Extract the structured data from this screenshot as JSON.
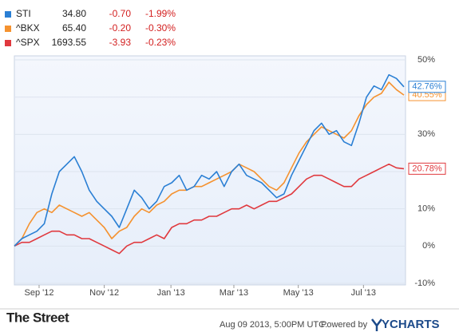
{
  "chart_data": {
    "type": "line",
    "x": [
      0,
      1,
      2,
      3,
      4,
      5,
      6,
      7,
      8,
      9,
      10,
      11,
      12,
      13,
      14,
      15,
      16,
      17,
      18,
      19,
      20,
      21,
      22,
      23,
      24,
      25,
      26,
      27,
      28,
      29,
      30,
      31,
      32,
      33,
      34,
      35,
      36,
      37,
      38,
      39,
      40,
      41,
      42,
      43,
      44,
      45,
      46,
      47,
      48,
      49,
      50,
      51,
      52
    ],
    "xlim": [
      0,
      52
    ],
    "xticks": [
      {
        "value": 3.3,
        "label": "Sep '12"
      },
      {
        "value": 12,
        "label": "Nov '12"
      },
      {
        "value": 20.9,
        "label": "Jan '13"
      },
      {
        "value": 29.3,
        "label": "Mar '13"
      },
      {
        "value": 37.9,
        "label": "May '13"
      },
      {
        "value": 46.6,
        "label": "Jul '13"
      }
    ],
    "ylim": [
      -10,
      50
    ],
    "yticks": [
      {
        "value": -10,
        "label": "-10%"
      },
      {
        "value": 0,
        "label": "0%"
      },
      {
        "value": 10,
        "label": "10%"
      },
      {
        "value": 20,
        "label": "20%"
      },
      {
        "value": 30,
        "label": "30%"
      },
      {
        "value": 40,
        "label": "40%"
      },
      {
        "value": 50,
        "label": "50%"
      }
    ],
    "grid": true,
    "series": [
      {
        "name": "STI",
        "color": "#2a7fd4",
        "price": {
          "value": 34.8,
          "label": "34.80"
        },
        "change": {
          "value": -0.7,
          "label": "-0.70"
        },
        "change_pct": {
          "value": -1.99,
          "label": "-1.99%"
        },
        "values": [
          0,
          2,
          3,
          4,
          6,
          14,
          20,
          22,
          24,
          20,
          15,
          12,
          10,
          8,
          5,
          10,
          15,
          13,
          10,
          12,
          16,
          17,
          19,
          15,
          16,
          19,
          18,
          20,
          16,
          20,
          22,
          19,
          18,
          17,
          15,
          13,
          14,
          19,
          23,
          27,
          31,
          33,
          30,
          31,
          28,
          27,
          33,
          40,
          43,
          42,
          46,
          45,
          42.76
        ],
        "value_labels": [
          null,
          null,
          null,
          null,
          null,
          null,
          null,
          null,
          null,
          null,
          null,
          null,
          null,
          null,
          null,
          null,
          null,
          null,
          null,
          null,
          null,
          null,
          null,
          null,
          null,
          null,
          null,
          null,
          null,
          null,
          null,
          null,
          null,
          null,
          null,
          null,
          null,
          null,
          null,
          null,
          null,
          null,
          null,
          null,
          null,
          null,
          null,
          null,
          null,
          null,
          null,
          null,
          "42.76%"
        ]
      },
      {
        "name": "^BKX",
        "color": "#f5922f",
        "price": {
          "value": 65.4,
          "label": "65.40"
        },
        "change": {
          "value": -0.2,
          "label": "-0.20"
        },
        "change_pct": {
          "value": -0.3,
          "label": "-0.30%"
        },
        "values": [
          0,
          2,
          6,
          9,
          10,
          9,
          11,
          10,
          9,
          8,
          9,
          7,
          5,
          2,
          4,
          5,
          8,
          10,
          9,
          11,
          12,
          14,
          15,
          15,
          16,
          16,
          17,
          18,
          19,
          20,
          22,
          21,
          20,
          18,
          16,
          15,
          17,
          21,
          25,
          28,
          30,
          32,
          31,
          30,
          29,
          31,
          35,
          38,
          40,
          41,
          44,
          42,
          40.55
        ],
        "value_labels": [
          null,
          null,
          null,
          null,
          null,
          null,
          null,
          null,
          null,
          null,
          null,
          null,
          null,
          null,
          null,
          null,
          null,
          null,
          null,
          null,
          null,
          null,
          null,
          null,
          null,
          null,
          null,
          null,
          null,
          null,
          null,
          null,
          null,
          null,
          null,
          null,
          null,
          null,
          null,
          null,
          null,
          null,
          null,
          null,
          null,
          null,
          null,
          null,
          null,
          null,
          null,
          null,
          "40.55%"
        ]
      },
      {
        "name": "^SPX",
        "color": "#e0393e",
        "price": {
          "value": 1693.55,
          "label": "1693.55"
        },
        "change": {
          "value": -3.93,
          "label": "-3.93"
        },
        "change_pct": {
          "value": -0.23,
          "label": "-0.23%"
        },
        "values": [
          0,
          1,
          1,
          2,
          3,
          4,
          4,
          3,
          3,
          2,
          2,
          1,
          0,
          -1,
          -2,
          0,
          1,
          1,
          2,
          3,
          2,
          5,
          6,
          6,
          7,
          7,
          8,
          8,
          9,
          10,
          10,
          11,
          10,
          11,
          12,
          12,
          13,
          14,
          16,
          18,
          19,
          19,
          18,
          17,
          16,
          16,
          18,
          19,
          20,
          21,
          22,
          21,
          20.78
        ],
        "value_labels": [
          null,
          null,
          null,
          null,
          null,
          null,
          null,
          null,
          null,
          null,
          null,
          null,
          null,
          null,
          null,
          null,
          null,
          null,
          null,
          null,
          null,
          null,
          null,
          null,
          null,
          null,
          null,
          null,
          null,
          null,
          null,
          null,
          null,
          null,
          null,
          null,
          null,
          null,
          null,
          null,
          null,
          null,
          null,
          null,
          null,
          null,
          null,
          null,
          null,
          null,
          null,
          null,
          "20.78%"
        ]
      }
    ],
    "footer": {
      "brand": "The Street",
      "timestamp": "Aug 09 2013, 5:00PM UTC.",
      "powered": "Powered by",
      "provider": "YCHARTS"
    }
  }
}
